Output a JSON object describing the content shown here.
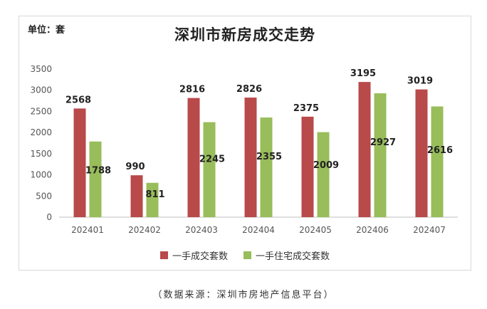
{
  "unit_label": "单位：套",
  "source_note": "（数据来源：深圳市房地产信息平台）",
  "colors": {
    "series1": "#b84a4a",
    "series2": "#98bd5a",
    "axis": "#bfbfbf",
    "text": "#555555"
  },
  "chart_data": {
    "type": "bar",
    "title": "深圳市新房成交走势",
    "xlabel": "",
    "ylabel": "",
    "categories": [
      "202401",
      "202402",
      "202403",
      "202404",
      "202405",
      "202406",
      "202407"
    ],
    "series": [
      {
        "name": "一手成交套数",
        "values": [
          2568,
          990,
          2816,
          2826,
          2375,
          3195,
          3019
        ]
      },
      {
        "name": "一手住宅成交套数",
        "values": [
          1788,
          811,
          2245,
          2355,
          2009,
          2927,
          2616
        ]
      }
    ],
    "ylim": [
      0,
      3500
    ],
    "yticks": [
      0,
      500,
      1000,
      1500,
      2000,
      2500,
      3000,
      3500
    ],
    "grid": false,
    "legend": "bottom"
  }
}
